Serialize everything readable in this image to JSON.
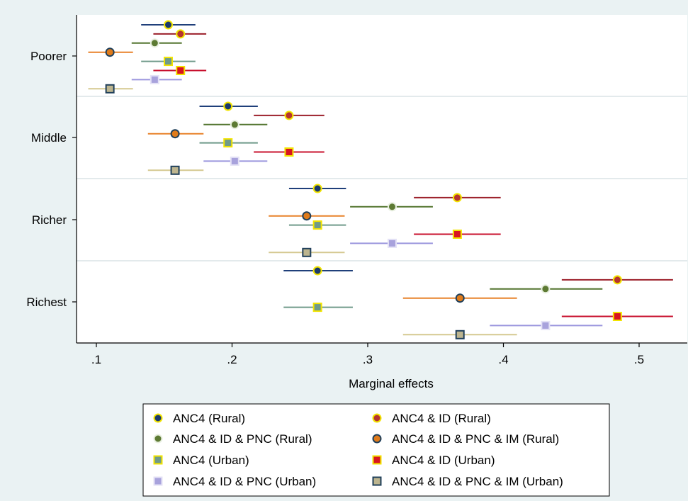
{
  "chart_data": {
    "type": "scatter",
    "subtype": "coefficient-plot-with-confidence-intervals",
    "orientation": "horizontal",
    "xlabel": "Marginal effects",
    "ylabel": "",
    "xlim": [
      0.095,
      0.528
    ],
    "xticks": [
      0.1,
      0.2,
      0.3,
      0.4,
      0.5
    ],
    "xtick_labels": [
      ".1",
      ".2",
      ".3",
      ".4",
      ".5"
    ],
    "categories": [
      "Poorer",
      "Middle",
      "Richer",
      "Richest"
    ],
    "grid": true,
    "legend_position": "bottom",
    "legend_columns": 2,
    "series": [
      {
        "name": "ANC4 (Rural)",
        "marker": "circle",
        "fill": "#1b3a6b",
        "edge": "#f2e400",
        "line": "#1f3f7a",
        "points": [
          {
            "category": "Poorer",
            "estimate": 0.153,
            "ci": [
              0.133,
              0.173
            ]
          },
          {
            "category": "Middle",
            "estimate": 0.197,
            "ci": [
              0.176,
              0.219
            ]
          },
          {
            "category": "Richer",
            "estimate": 0.263,
            "ci": [
              0.242,
              0.284
            ]
          },
          {
            "category": "Richest",
            "estimate": 0.263,
            "ci": [
              0.238,
              0.289
            ]
          }
        ]
      },
      {
        "name": "ANC4 & ID (Rural)",
        "marker": "circle",
        "fill": "#b5342f",
        "edge": "#f2e400",
        "line": "#9c1f2a",
        "points": [
          {
            "category": "Poorer",
            "estimate": 0.162,
            "ci": [
              0.142,
              0.181
            ]
          },
          {
            "category": "Middle",
            "estimate": 0.242,
            "ci": [
              0.216,
              0.268
            ]
          },
          {
            "category": "Richer",
            "estimate": 0.366,
            "ci": [
              0.334,
              0.398
            ]
          },
          {
            "category": "Richest",
            "estimate": 0.484,
            "ci": [
              0.443,
              0.525
            ]
          }
        ]
      },
      {
        "name": "ANC4 & ID & PNC (Rural)",
        "marker": "circle",
        "fill": "#5d7a33",
        "edge": "#e8efe0",
        "line": "#52742e",
        "points": [
          {
            "category": "Poorer",
            "estimate": 0.143,
            "ci": [
              0.126,
              0.163
            ]
          },
          {
            "category": "Middle",
            "estimate": 0.202,
            "ci": [
              0.179,
              0.226
            ]
          },
          {
            "category": "Richer",
            "estimate": 0.318,
            "ci": [
              0.287,
              0.348
            ]
          },
          {
            "category": "Richest",
            "estimate": 0.431,
            "ci": [
              0.39,
              0.473
            ]
          }
        ]
      },
      {
        "name": "ANC4 & ID & PNC & IM (Rural)",
        "marker": "circle",
        "fill": "#e07b1a",
        "edge": "#1f3f5a",
        "line": "#e8822a",
        "points": [
          {
            "category": "Poorer",
            "estimate": 0.11,
            "ci": [
              0.094,
              0.127
            ]
          },
          {
            "category": "Middle",
            "estimate": 0.158,
            "ci": [
              0.138,
              0.179
            ]
          },
          {
            "category": "Richer",
            "estimate": 0.255,
            "ci": [
              0.227,
              0.283
            ]
          },
          {
            "category": "Richest",
            "estimate": 0.368,
            "ci": [
              0.326,
              0.41
            ]
          }
        ]
      },
      {
        "name": "ANC4 (Urban)",
        "marker": "square",
        "fill": "#6f9a8a",
        "edge": "#f2e400",
        "line": "#6f9a8a",
        "points": [
          {
            "category": "Poorer",
            "estimate": 0.153,
            "ci": [
              0.133,
              0.173
            ]
          },
          {
            "category": "Middle",
            "estimate": 0.197,
            "ci": [
              0.176,
              0.219
            ]
          },
          {
            "category": "Richer",
            "estimate": 0.263,
            "ci": [
              0.242,
              0.284
            ]
          },
          {
            "category": "Richest",
            "estimate": 0.263,
            "ci": [
              0.238,
              0.289
            ]
          }
        ]
      },
      {
        "name": "ANC4 & ID (Urban)",
        "marker": "square",
        "fill": "#d81520",
        "edge": "#f2e400",
        "line": "#c8102e",
        "points": [
          {
            "category": "Poorer",
            "estimate": 0.162,
            "ci": [
              0.142,
              0.181
            ]
          },
          {
            "category": "Middle",
            "estimate": 0.242,
            "ci": [
              0.216,
              0.268
            ]
          },
          {
            "category": "Richer",
            "estimate": 0.366,
            "ci": [
              0.334,
              0.398
            ]
          },
          {
            "category": "Richest",
            "estimate": 0.484,
            "ci": [
              0.443,
              0.525
            ]
          }
        ]
      },
      {
        "name": "ANC4 & ID & PNC (Urban)",
        "marker": "square",
        "fill": "#a8a2dc",
        "edge": "#e4e2f6",
        "line": "#9b96de",
        "points": [
          {
            "category": "Poorer",
            "estimate": 0.143,
            "ci": [
              0.126,
              0.163
            ]
          },
          {
            "category": "Middle",
            "estimate": 0.202,
            "ci": [
              0.179,
              0.226
            ]
          },
          {
            "category": "Richer",
            "estimate": 0.318,
            "ci": [
              0.287,
              0.348
            ]
          },
          {
            "category": "Richest",
            "estimate": 0.431,
            "ci": [
              0.39,
              0.473
            ]
          }
        ]
      },
      {
        "name": "ANC4 & ID & PNC & IM (Urban)",
        "marker": "square",
        "fill": "#bdb58f",
        "edge": "#1f3f5a",
        "line": "#d5c991",
        "points": [
          {
            "category": "Poorer",
            "estimate": 0.11,
            "ci": [
              0.094,
              0.127
            ]
          },
          {
            "category": "Middle",
            "estimate": 0.158,
            "ci": [
              0.138,
              0.179
            ]
          },
          {
            "category": "Richer",
            "estimate": 0.255,
            "ci": [
              0.227,
              0.283
            ]
          },
          {
            "category": "Richest",
            "estimate": 0.368,
            "ci": [
              0.326,
              0.41
            ]
          }
        ]
      }
    ]
  },
  "colors": {
    "background": "#eaf2f3",
    "plot_background": "#ffffff",
    "legend_background": "#ffffff",
    "grid": "#e3eaec",
    "axis": "#000000"
  }
}
